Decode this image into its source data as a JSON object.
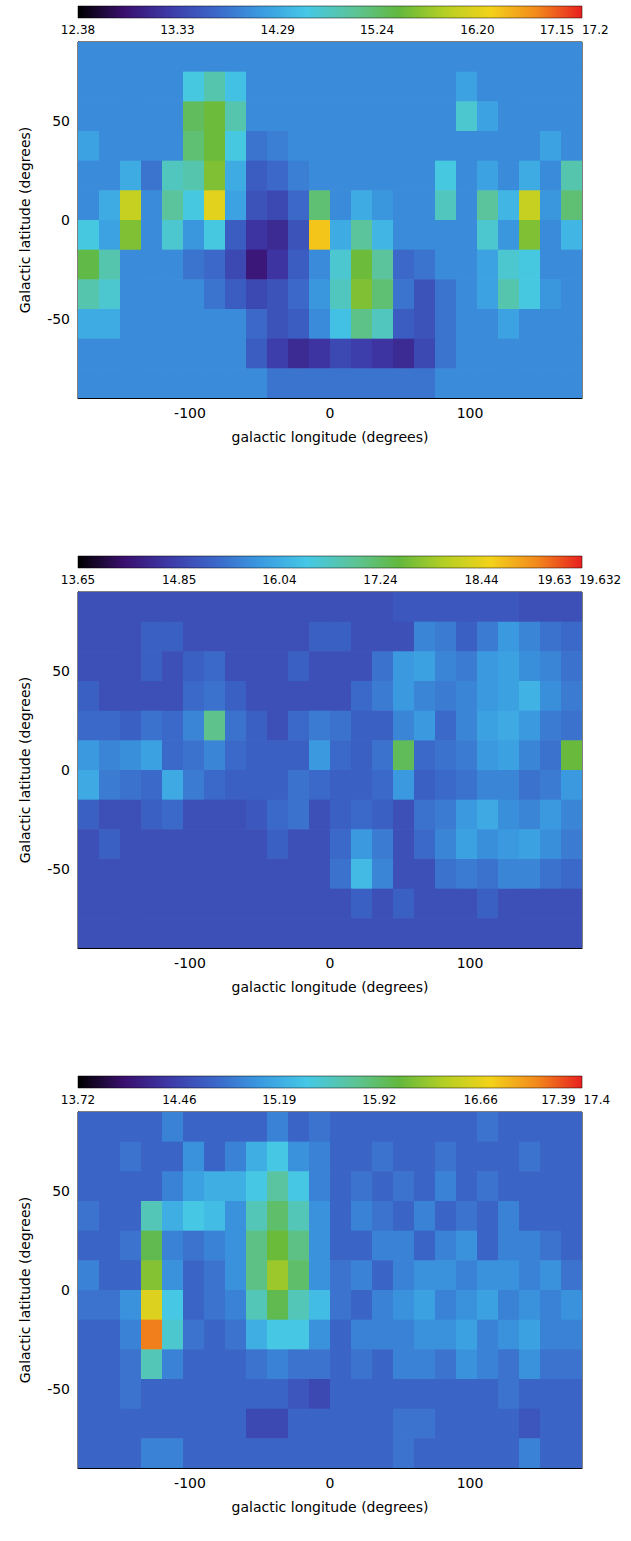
{
  "chart_data": [
    {
      "type": "heatmap",
      "x_label": "galactic longitude (degrees)",
      "y_label": "Galactic latitude (degrees)",
      "xlim": [
        -180,
        180
      ],
      "ylim": [
        -90,
        90
      ],
      "xticks": [
        -100,
        0,
        100
      ],
      "yticks": [
        -50,
        0,
        50
      ],
      "grid": false,
      "lon": [
        -172.5,
        -157.5,
        -142.5,
        -127.5,
        -112.5,
        -97.5,
        -82.5,
        -67.5,
        -52.5,
        -37.5,
        -22.5,
        -7.5,
        7.5,
        22.5,
        37.5,
        52.5,
        67.5,
        82.5,
        97.5,
        112.5,
        127.5,
        142.5,
        157.5,
        172.5
      ],
      "lat": [
        82.5,
        67.5,
        52.5,
        37.5,
        22.5,
        7.5,
        -7.5,
        -22.5,
        -37.5,
        -52.5,
        -67.5,
        -82.5
      ],
      "z": [
        [
          14.0,
          14.0,
          14.0,
          14.0,
          14.0,
          14.0,
          14.0,
          14.0,
          14.0,
          14.0,
          14.0,
          14.0,
          14.0,
          14.0,
          14.0,
          14.0,
          14.0,
          14.0,
          14.0,
          14.0,
          14.0,
          14.0,
          14.0,
          14.0
        ],
        [
          14.0,
          14.0,
          14.0,
          14.0,
          14.0,
          14.6,
          14.9,
          14.5,
          14.0,
          14.0,
          14.0,
          14.0,
          14.0,
          14.0,
          14.0,
          14.0,
          14.0,
          14.0,
          14.2,
          14.0,
          14.0,
          14.0,
          14.0,
          14.0
        ],
        [
          14.0,
          14.0,
          14.0,
          14.0,
          14.0,
          15.3,
          15.5,
          14.9,
          14.0,
          14.0,
          14.0,
          14.0,
          14.0,
          14.0,
          14.0,
          14.0,
          14.0,
          14.0,
          14.7,
          14.2,
          14.0,
          14.0,
          14.0,
          14.0
        ],
        [
          14.2,
          14.0,
          14.0,
          14.0,
          14.0,
          15.2,
          15.5,
          14.6,
          13.8,
          13.9,
          14.0,
          14.0,
          14.0,
          14.0,
          14.0,
          14.0,
          14.0,
          14.0,
          14.0,
          14.0,
          14.0,
          14.0,
          14.2,
          14.0
        ],
        [
          14.0,
          14.0,
          14.3,
          13.8,
          14.8,
          14.9,
          15.6,
          14.3,
          13.6,
          13.7,
          13.9,
          14.0,
          14.0,
          14.0,
          14.0,
          14.0,
          14.0,
          14.6,
          14.0,
          14.2,
          14.0,
          14.3,
          14.0,
          14.9
        ],
        [
          14.0,
          14.3,
          16.0,
          14.0,
          15.0,
          14.6,
          16.2,
          14.2,
          13.5,
          13.4,
          13.7,
          15.2,
          14.0,
          14.3,
          14.1,
          14.0,
          14.0,
          14.8,
          14.0,
          15.0,
          14.4,
          16.0,
          14.1,
          15.2
        ],
        [
          14.6,
          14.2,
          15.6,
          14.0,
          14.7,
          14.1,
          14.6,
          13.6,
          13.2,
          13.1,
          13.5,
          16.4,
          14.3,
          15.0,
          14.4,
          14.0,
          14.0,
          14.0,
          14.0,
          14.7,
          14.1,
          15.6,
          14.0,
          14.4
        ],
        [
          15.4,
          14.9,
          14.0,
          14.0,
          14.0,
          13.8,
          13.7,
          13.4,
          12.9,
          13.2,
          13.6,
          14.0,
          14.7,
          15.5,
          15.0,
          13.7,
          13.8,
          14.0,
          14.0,
          14.2,
          14.7,
          14.6,
          14.0,
          14.0
        ],
        [
          14.9,
          14.7,
          14.0,
          14.0,
          14.0,
          14.0,
          13.8,
          13.6,
          13.4,
          13.5,
          13.7,
          14.1,
          14.8,
          15.6,
          15.2,
          13.8,
          13.5,
          13.8,
          14.0,
          14.2,
          14.9,
          14.6,
          14.1,
          14.0
        ],
        [
          14.3,
          14.3,
          14.0,
          14.0,
          14.0,
          14.0,
          14.0,
          14.0,
          13.7,
          13.5,
          13.6,
          14.0,
          14.5,
          15.1,
          14.8,
          13.6,
          13.5,
          13.8,
          14.0,
          14.0,
          14.2,
          14.0,
          14.0,
          14.0
        ],
        [
          14.0,
          14.0,
          14.0,
          14.0,
          14.0,
          14.0,
          14.0,
          14.0,
          13.6,
          13.3,
          13.1,
          13.2,
          13.4,
          13.3,
          13.2,
          13.1,
          13.4,
          13.8,
          14.0,
          14.0,
          14.0,
          14.0,
          14.0,
          14.0
        ],
        [
          14.0,
          14.0,
          14.0,
          14.0,
          14.0,
          14.0,
          14.0,
          14.0,
          14.0,
          13.8,
          13.8,
          13.8,
          13.8,
          13.8,
          13.8,
          13.8,
          13.8,
          14.0,
          14.0,
          14.0,
          14.0,
          14.0,
          14.0,
          14.0
        ]
      ],
      "colorbar": {
        "range": [
          12.38,
          17.2
        ],
        "ticks": [
          12.38,
          13.33,
          14.29,
          15.24,
          {
            "value": 16.2,
            "label": "16.20"
          },
          17.15,
          17.2
        ]
      }
    },
    {
      "type": "heatmap",
      "x_label": "galactic longitude (degrees)",
      "y_label": "Galactic latitude (degrees)",
      "xlim": [
        -180,
        180
      ],
      "ylim": [
        -90,
        90
      ],
      "xticks": [
        -100,
        0,
        100
      ],
      "yticks": [
        -50,
        0,
        50
      ],
      "grid": false,
      "lon": [
        -172.5,
        -157.5,
        -142.5,
        -127.5,
        -112.5,
        -97.5,
        -82.5,
        -67.5,
        -52.5,
        -37.5,
        -22.5,
        -7.5,
        7.5,
        22.5,
        37.5,
        52.5,
        67.5,
        82.5,
        97.5,
        112.5,
        127.5,
        142.5,
        157.5,
        172.5
      ],
      "lat": [
        82.5,
        67.5,
        52.5,
        37.5,
        22.5,
        7.5,
        -7.5,
        -22.5,
        -37.5,
        -52.5,
        -67.5,
        -82.5
      ],
      "z": [
        [
          15.0,
          15.0,
          15.0,
          15.0,
          15.0,
          15.0,
          15.0,
          15.0,
          15.0,
          15.0,
          15.0,
          15.0,
          15.0,
          15.0,
          15.0,
          15.1,
          15.1,
          15.1,
          15.1,
          15.1,
          15.1,
          15.0,
          15.0,
          15.0
        ],
        [
          15.0,
          15.0,
          15.0,
          15.2,
          15.2,
          15.0,
          15.0,
          15.0,
          15.0,
          15.0,
          15.0,
          15.2,
          15.2,
          15.0,
          15.0,
          15.0,
          15.6,
          15.5,
          15.2,
          15.5,
          15.8,
          15.6,
          15.4,
          15.3
        ],
        [
          15.0,
          15.0,
          15.0,
          15.2,
          15.0,
          15.2,
          15.3,
          15.0,
          15.0,
          15.0,
          15.2,
          15.0,
          15.0,
          15.0,
          15.4,
          15.8,
          15.9,
          15.6,
          15.5,
          15.8,
          15.9,
          15.7,
          15.6,
          15.4
        ],
        [
          15.2,
          15.0,
          15.0,
          15.0,
          15.0,
          15.3,
          15.4,
          15.2,
          15.0,
          15.0,
          15.0,
          15.0,
          15.0,
          15.3,
          15.5,
          15.8,
          15.6,
          15.5,
          15.6,
          15.8,
          15.9,
          16.1,
          15.7,
          15.5
        ],
        [
          15.3,
          15.3,
          15.2,
          15.4,
          15.3,
          15.6,
          17.0,
          15.4,
          15.2,
          15.0,
          15.3,
          15.5,
          15.4,
          15.2,
          15.2,
          15.6,
          15.8,
          15.3,
          15.6,
          15.9,
          16.0,
          15.8,
          15.5,
          15.4
        ],
        [
          15.8,
          15.6,
          15.7,
          15.9,
          15.3,
          15.4,
          15.6,
          15.3,
          15.2,
          15.2,
          15.2,
          15.8,
          15.3,
          15.2,
          15.4,
          17.3,
          15.3,
          15.4,
          15.5,
          15.8,
          15.9,
          15.6,
          15.4,
          17.5
        ],
        [
          16.0,
          15.5,
          15.4,
          15.3,
          16.0,
          15.5,
          15.3,
          15.2,
          15.2,
          15.2,
          15.4,
          15.3,
          15.2,
          15.2,
          15.3,
          15.8,
          15.2,
          15.3,
          15.4,
          15.6,
          15.6,
          15.4,
          15.5,
          15.8
        ],
        [
          15.2,
          15.0,
          15.0,
          15.2,
          15.3,
          15.0,
          15.0,
          15.0,
          15.1,
          15.3,
          15.4,
          15.0,
          15.2,
          15.3,
          15.2,
          15.0,
          15.4,
          15.5,
          15.8,
          16.0,
          15.7,
          15.6,
          15.8,
          15.6
        ],
        [
          15.0,
          15.2,
          15.0,
          15.0,
          15.0,
          15.0,
          15.0,
          15.0,
          15.0,
          15.2,
          15.0,
          15.0,
          15.3,
          15.8,
          15.5,
          15.0,
          15.3,
          15.6,
          15.9,
          15.7,
          15.8,
          15.9,
          15.7,
          15.5
        ],
        [
          15.0,
          15.0,
          15.0,
          15.0,
          15.0,
          15.0,
          15.0,
          15.0,
          15.0,
          15.0,
          15.0,
          15.0,
          15.4,
          16.2,
          15.6,
          15.0,
          15.0,
          15.4,
          15.5,
          15.4,
          15.6,
          15.6,
          15.4,
          15.3
        ],
        [
          15.0,
          15.0,
          15.0,
          15.0,
          15.0,
          15.0,
          15.0,
          15.0,
          15.0,
          15.0,
          15.0,
          15.0,
          15.0,
          15.2,
          15.0,
          15.2,
          15.0,
          15.0,
          15.0,
          15.2,
          15.0,
          15.0,
          15.0,
          15.0
        ],
        [
          15.0,
          15.0,
          15.0,
          15.0,
          15.0,
          15.0,
          15.0,
          15.0,
          15.0,
          15.0,
          15.0,
          15.0,
          15.0,
          15.0,
          15.0,
          15.0,
          15.0,
          15.0,
          15.0,
          15.0,
          15.0,
          15.0,
          15.0,
          15.0
        ]
      ],
      "colorbar": {
        "range": [
          13.65,
          19.632
        ],
        "ticks": [
          13.65,
          14.85,
          16.04,
          17.24,
          18.44,
          19.63,
          19.632
        ]
      }
    },
    {
      "type": "heatmap",
      "x_label": "galactic longitude (degrees)",
      "y_label": "Galactic latitude (degrees)",
      "xlim": [
        -180,
        180
      ],
      "ylim": [
        -90,
        90
      ],
      "xticks": [
        -100,
        0,
        100
      ],
      "yticks": [
        -50,
        0,
        50
      ],
      "grid": false,
      "lon": [
        -172.5,
        -157.5,
        -142.5,
        -127.5,
        -112.5,
        -97.5,
        -82.5,
        -67.5,
        -52.5,
        -37.5,
        -22.5,
        -7.5,
        7.5,
        22.5,
        37.5,
        52.5,
        67.5,
        82.5,
        97.5,
        112.5,
        127.5,
        142.5,
        157.5,
        172.5
      ],
      "lat": [
        82.5,
        67.5,
        52.5,
        37.5,
        22.5,
        7.5,
        -7.5,
        -22.5,
        -37.5,
        -52.5,
        -67.5,
        -82.5
      ],
      "z": [
        [
          14.7,
          14.7,
          14.7,
          14.7,
          14.9,
          14.7,
          14.7,
          14.7,
          14.7,
          14.9,
          14.7,
          14.8,
          14.7,
          14.7,
          14.7,
          14.7,
          14.7,
          14.7,
          14.7,
          14.8,
          14.7,
          14.7,
          14.7,
          14.7
        ],
        [
          14.7,
          14.7,
          14.8,
          14.7,
          14.7,
          15.0,
          14.7,
          14.9,
          15.2,
          15.4,
          15.0,
          14.9,
          14.7,
          14.7,
          14.8,
          14.7,
          14.7,
          14.8,
          14.7,
          14.7,
          14.7,
          14.8,
          14.7,
          14.7
        ],
        [
          14.7,
          14.7,
          14.7,
          14.7,
          14.9,
          15.1,
          15.2,
          15.2,
          15.4,
          15.7,
          15.4,
          14.9,
          14.7,
          14.8,
          14.7,
          14.8,
          14.7,
          14.9,
          14.7,
          14.8,
          14.7,
          14.7,
          14.7,
          14.7
        ],
        [
          14.8,
          14.7,
          14.7,
          15.6,
          15.2,
          15.4,
          15.3,
          15.0,
          15.6,
          15.9,
          15.6,
          15.0,
          14.7,
          14.9,
          14.8,
          14.7,
          14.9,
          14.7,
          14.8,
          14.7,
          14.9,
          14.7,
          14.7,
          14.7
        ],
        [
          14.7,
          14.7,
          14.8,
          16.0,
          14.9,
          14.8,
          14.9,
          15.0,
          15.8,
          16.1,
          15.8,
          15.0,
          14.7,
          14.7,
          14.9,
          14.9,
          14.7,
          14.9,
          15.0,
          14.7,
          14.9,
          14.9,
          14.8,
          14.7
        ],
        [
          14.9,
          14.7,
          14.7,
          16.2,
          15.0,
          14.7,
          14.8,
          15.0,
          15.8,
          16.3,
          15.9,
          15.0,
          14.8,
          14.9,
          14.7,
          14.9,
          15.0,
          15.0,
          14.9,
          15.0,
          15.0,
          14.9,
          15.0,
          14.8
        ],
        [
          14.8,
          14.8,
          15.0,
          16.6,
          15.4,
          14.7,
          14.8,
          14.9,
          15.6,
          16.0,
          15.6,
          15.3,
          14.8,
          14.7,
          14.9,
          15.0,
          15.1,
          14.9,
          15.0,
          15.1,
          14.9,
          15.0,
          14.9,
          15.0
        ],
        [
          14.7,
          14.7,
          14.9,
          17.1,
          15.5,
          14.8,
          14.7,
          14.8,
          15.2,
          15.4,
          15.4,
          15.0,
          14.7,
          14.9,
          14.9,
          14.9,
          15.0,
          15.0,
          15.1,
          14.9,
          15.0,
          15.1,
          14.9,
          14.9
        ],
        [
          14.7,
          14.7,
          14.8,
          15.6,
          14.9,
          14.7,
          14.7,
          14.7,
          14.8,
          14.9,
          14.8,
          14.8,
          14.7,
          14.8,
          14.7,
          14.9,
          14.9,
          14.8,
          15.0,
          14.9,
          14.8,
          15.0,
          14.8,
          14.8
        ],
        [
          14.7,
          14.7,
          14.8,
          14.7,
          14.7,
          14.7,
          14.7,
          14.7,
          14.7,
          14.7,
          14.6,
          14.5,
          14.7,
          14.7,
          14.7,
          14.7,
          14.7,
          14.7,
          14.7,
          14.7,
          14.8,
          14.7,
          14.7,
          14.7
        ],
        [
          14.7,
          14.7,
          14.7,
          14.7,
          14.7,
          14.7,
          14.7,
          14.7,
          14.5,
          14.5,
          14.7,
          14.7,
          14.7,
          14.7,
          14.7,
          14.8,
          14.8,
          14.7,
          14.7,
          14.7,
          14.7,
          14.6,
          14.7,
          14.7
        ],
        [
          14.7,
          14.7,
          14.7,
          14.9,
          14.9,
          14.7,
          14.7,
          14.7,
          14.7,
          14.7,
          14.7,
          14.7,
          14.7,
          14.7,
          14.7,
          14.8,
          14.7,
          14.7,
          14.7,
          14.7,
          14.7,
          14.9,
          14.7,
          14.7
        ]
      ],
      "colorbar": {
        "range": [
          13.72,
          17.4
        ],
        "ticks": [
          13.72,
          14.46,
          15.19,
          15.92,
          16.66,
          17.39,
          17.4
        ]
      }
    }
  ]
}
